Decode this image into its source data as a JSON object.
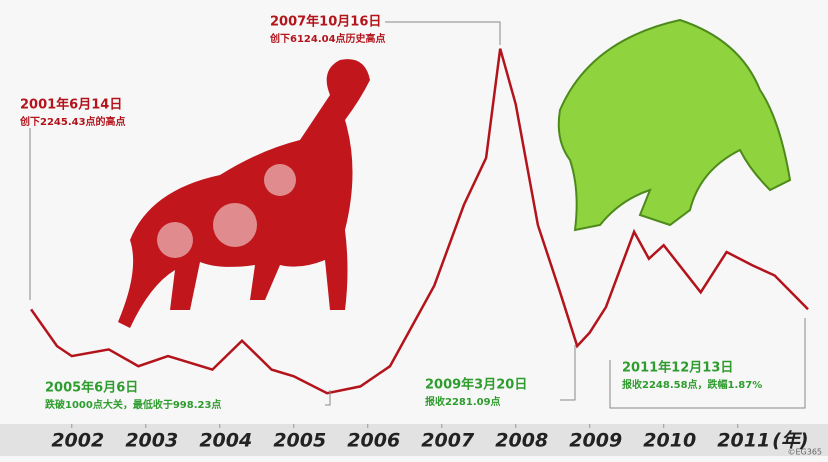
{
  "chart_data": {
    "type": "line",
    "x": [
      2001.45,
      2001.8,
      2002.0,
      2002.5,
      2002.9,
      2003.3,
      2003.9,
      2004.3,
      2004.7,
      2005.0,
      2005.45,
      2005.9,
      2006.3,
      2006.9,
      2007.3,
      2007.6,
      2007.79,
      2008.0,
      2008.3,
      2008.6,
      2008.83,
      2009.0,
      2009.22,
      2009.6,
      2009.8,
      2010.0,
      2010.5,
      2010.85,
      2011.2,
      2011.5,
      2011.95
    ],
    "values": [
      2245,
      1700,
      1550,
      1650,
      1400,
      1550,
      1350,
      1780,
      1350,
      1250,
      998,
      1100,
      1400,
      2600,
      3800,
      4500,
      6124,
      5300,
      3500,
      2500,
      1700,
      1900,
      2281,
      3400,
      3000,
      3200,
      2500,
      3100,
      2900,
      2750,
      2248
    ],
    "color": "#b3141b",
    "xlim": [
      2001.03,
      2012.22
    ],
    "ylim": [
      600,
      6700
    ],
    "xticks": [
      2002,
      2003,
      2004,
      2005,
      2006,
      2007,
      2008,
      2009,
      2010,
      2011
    ],
    "x_unit": "(年)",
    "annotations": [
      {
        "date": "2001年6月14日",
        "text": "创下2245.43点的高点"
      },
      {
        "date": "2007年10月16日",
        "text": "创下6124.04点历史高点"
      },
      {
        "date": "2005年6月6日",
        "text": "跌破1000点大关，最低收于998.23点"
      },
      {
        "date": "2009年3月20日",
        "text": "报收2281.09点"
      },
      {
        "date": "2011年12月13日",
        "text": "报收2248.58点，跌幅1.87%"
      }
    ],
    "credit": "©EG365"
  }
}
